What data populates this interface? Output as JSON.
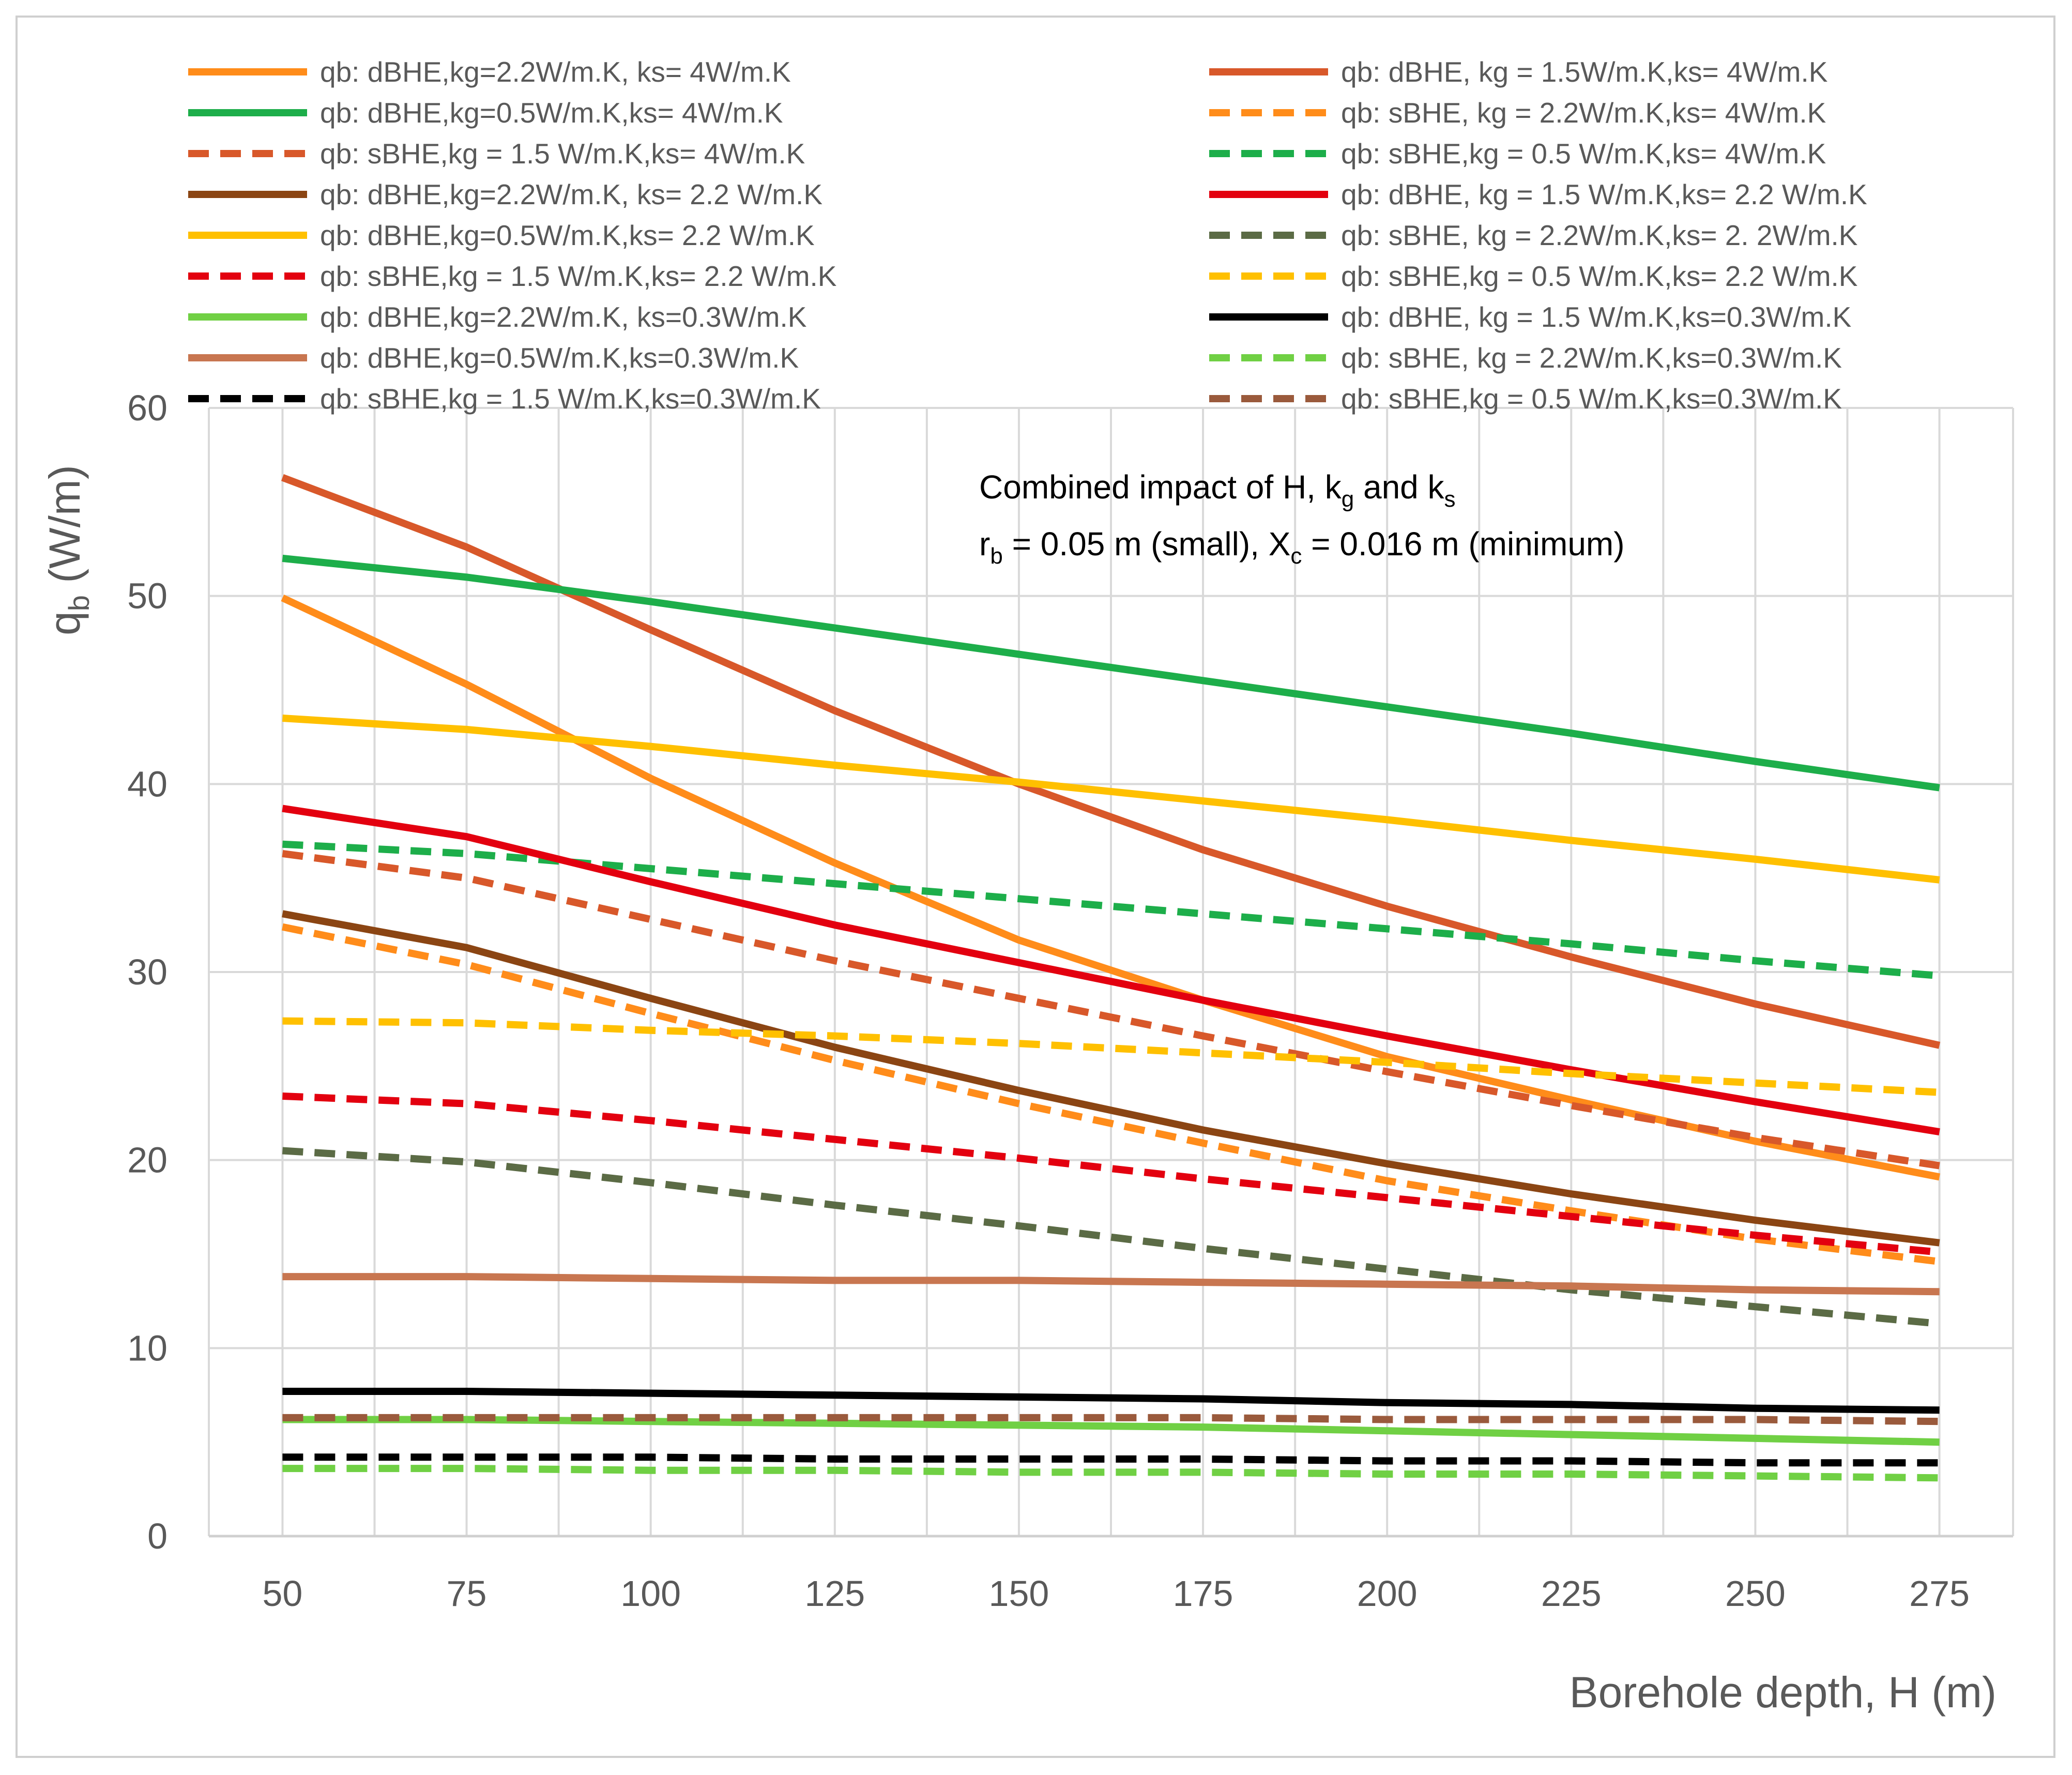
{
  "chart_data": {
    "type": "line",
    "title": "",
    "xlabel": "Borehole depth, H (m)",
    "ylabel": "qb (W/m)",
    "ylabel_parts": {
      "main": "q",
      "sub": "b",
      "rest": " (W/m)"
    },
    "xlim": [
      40,
      285
    ],
    "ylim": [
      0,
      60
    ],
    "xticks": [
      50,
      75,
      100,
      125,
      150,
      175,
      200,
      225,
      250,
      275
    ],
    "yticks": [
      0,
      10,
      20,
      30,
      40,
      50,
      60
    ],
    "grid": true,
    "legend_position": "top",
    "annotation": {
      "line1": {
        "text": "Combined impact of H, k",
        "sub1": "g",
        "mid": " and k",
        "sub2": "s"
      },
      "line2": {
        "r": "r",
        "r_sub": "b",
        "r_rest": " = 0.05 m (small), X",
        "x_sub": "c",
        "x_rest": " = 0.016 m (minimum)"
      }
    },
    "x": [
      50,
      75,
      100,
      125,
      150,
      175,
      200,
      225,
      250,
      275
    ],
    "series": [
      {
        "name": "qb: dBHE,kg=2.2W/m.K, ks= 4W/m.K",
        "color": "#FF8C1A",
        "dash": false,
        "values": [
          49.9,
          45.3,
          40.3,
          35.8,
          31.7,
          28.5,
          25.5,
          23.2,
          21.0,
          19.1
        ]
      },
      {
        "name": "qb: dBHE, kg = 1.5W/m.K,ks= 4W/m.K",
        "color": "#D8582A",
        "dash": false,
        "values": [
          56.3,
          52.6,
          48.2,
          43.9,
          40.0,
          36.5,
          33.5,
          30.8,
          28.3,
          26.1
        ]
      },
      {
        "name": "qb: dBHE,kg=0.5W/m.K,ks= 4W/m.K",
        "color": "#1DAE4A",
        "dash": false,
        "values": [
          52.0,
          51.0,
          49.7,
          48.3,
          46.9,
          45.5,
          44.1,
          42.7,
          41.2,
          39.8
        ]
      },
      {
        "name": "qb: sBHE, kg = 2.2W/m.K,ks= 4W/m.K",
        "color": "#FF8C1A",
        "dash": true,
        "values": [
          32.4,
          30.4,
          27.8,
          25.3,
          23.0,
          20.9,
          18.9,
          17.3,
          15.8,
          14.6
        ]
      },
      {
        "name": "qb: sBHE,kg = 1.5 W/m.K,ks= 4W/m.K",
        "color": "#D8582A",
        "dash": true,
        "values": [
          36.3,
          35.0,
          32.8,
          30.6,
          28.6,
          26.6,
          24.7,
          22.9,
          21.2,
          19.7
        ]
      },
      {
        "name": "qb: sBHE,kg = 0.5 W/m.K,ks= 4W/m.K",
        "color": "#1DAE4A",
        "dash": true,
        "values": [
          36.8,
          36.3,
          35.5,
          34.7,
          33.9,
          33.1,
          32.3,
          31.5,
          30.6,
          29.8
        ]
      },
      {
        "name": "qb: dBHE,kg=2.2W/m.K, ks= 2.2 W/m.K",
        "color": "#8B4513",
        "dash": false,
        "values": [
          33.1,
          31.3,
          28.6,
          26.0,
          23.7,
          21.6,
          19.8,
          18.2,
          16.8,
          15.6
        ]
      },
      {
        "name": "qb: dBHE, kg = 1.5 W/m.K,ks= 2.2 W/m.K",
        "color": "#E3000F",
        "dash": false,
        "values": [
          38.7,
          37.2,
          34.8,
          32.5,
          30.5,
          28.5,
          26.6,
          24.8,
          23.1,
          21.5
        ]
      },
      {
        "name": "qb: dBHE,kg=0.5W/m.K,ks= 2.2 W/m.K",
        "color": "#FFC000",
        "dash": false,
        "values": [
          43.5,
          42.9,
          42.0,
          41.0,
          40.1,
          39.1,
          38.1,
          37.0,
          36.0,
          34.9
        ]
      },
      {
        "name": "qb: sBHE, kg = 2.2W/m.K,ks= 2. 2W/m.K",
        "color": "#5B6B45",
        "dash": true,
        "values": [
          20.5,
          19.9,
          18.8,
          17.6,
          16.5,
          15.3,
          14.2,
          13.1,
          12.2,
          11.3
        ]
      },
      {
        "name": "qb: sBHE,kg = 1.5 W/m.K,ks= 2.2 W/m.K",
        "color": "#E3000F",
        "dash": true,
        "values": [
          23.4,
          23.0,
          22.1,
          21.1,
          20.1,
          19.0,
          18.0,
          17.0,
          16.0,
          15.1
        ]
      },
      {
        "name": "qb: sBHE,kg = 0.5 W/m.K,ks= 2.2 W/m.K",
        "color": "#FFC000",
        "dash": true,
        "values": [
          27.4,
          27.3,
          26.9,
          26.6,
          26.2,
          25.7,
          25.2,
          24.6,
          24.1,
          23.6
        ]
      },
      {
        "name": "qb: dBHE,kg=2.2W/m.K, ks=0.3W/m.K",
        "color": "#70D044",
        "dash": false,
        "values": [
          6.2,
          6.2,
          6.1,
          6.0,
          5.9,
          5.8,
          5.6,
          5.4,
          5.2,
          5.0
        ]
      },
      {
        "name": "qb: dBHE, kg = 1.5 W/m.K,ks=0.3W/m.K",
        "color": "#000000",
        "dash": false,
        "values": [
          7.7,
          7.7,
          7.6,
          7.5,
          7.4,
          7.3,
          7.1,
          7.0,
          6.8,
          6.7
        ]
      },
      {
        "name": "qb: dBHE,kg=0.5W/m.K,ks=0.3W/m.K",
        "color": "#C87650",
        "dash": false,
        "values": [
          13.8,
          13.8,
          13.7,
          13.6,
          13.6,
          13.5,
          13.4,
          13.3,
          13.1,
          13.0
        ]
      },
      {
        "name": "qb: sBHE, kg = 2.2W/m.K,ks=0.3W/m.K",
        "color": "#70D044",
        "dash": true,
        "values": [
          3.6,
          3.6,
          3.5,
          3.5,
          3.4,
          3.4,
          3.3,
          3.3,
          3.2,
          3.1
        ]
      },
      {
        "name": "qb: sBHE,kg = 1.5 W/m.K,ks=0.3W/m.K",
        "color": "#000000",
        "dash": true,
        "values": [
          4.2,
          4.2,
          4.2,
          4.1,
          4.1,
          4.1,
          4.0,
          4.0,
          3.9,
          3.9
        ]
      },
      {
        "name": "qb: sBHE,kg = 0.5 W/m.K,ks=0.3W/m.K",
        "color": "#9A5A3C",
        "dash": true,
        "values": [
          6.3,
          6.3,
          6.3,
          6.3,
          6.3,
          6.3,
          6.2,
          6.2,
          6.2,
          6.1
        ]
      }
    ]
  }
}
